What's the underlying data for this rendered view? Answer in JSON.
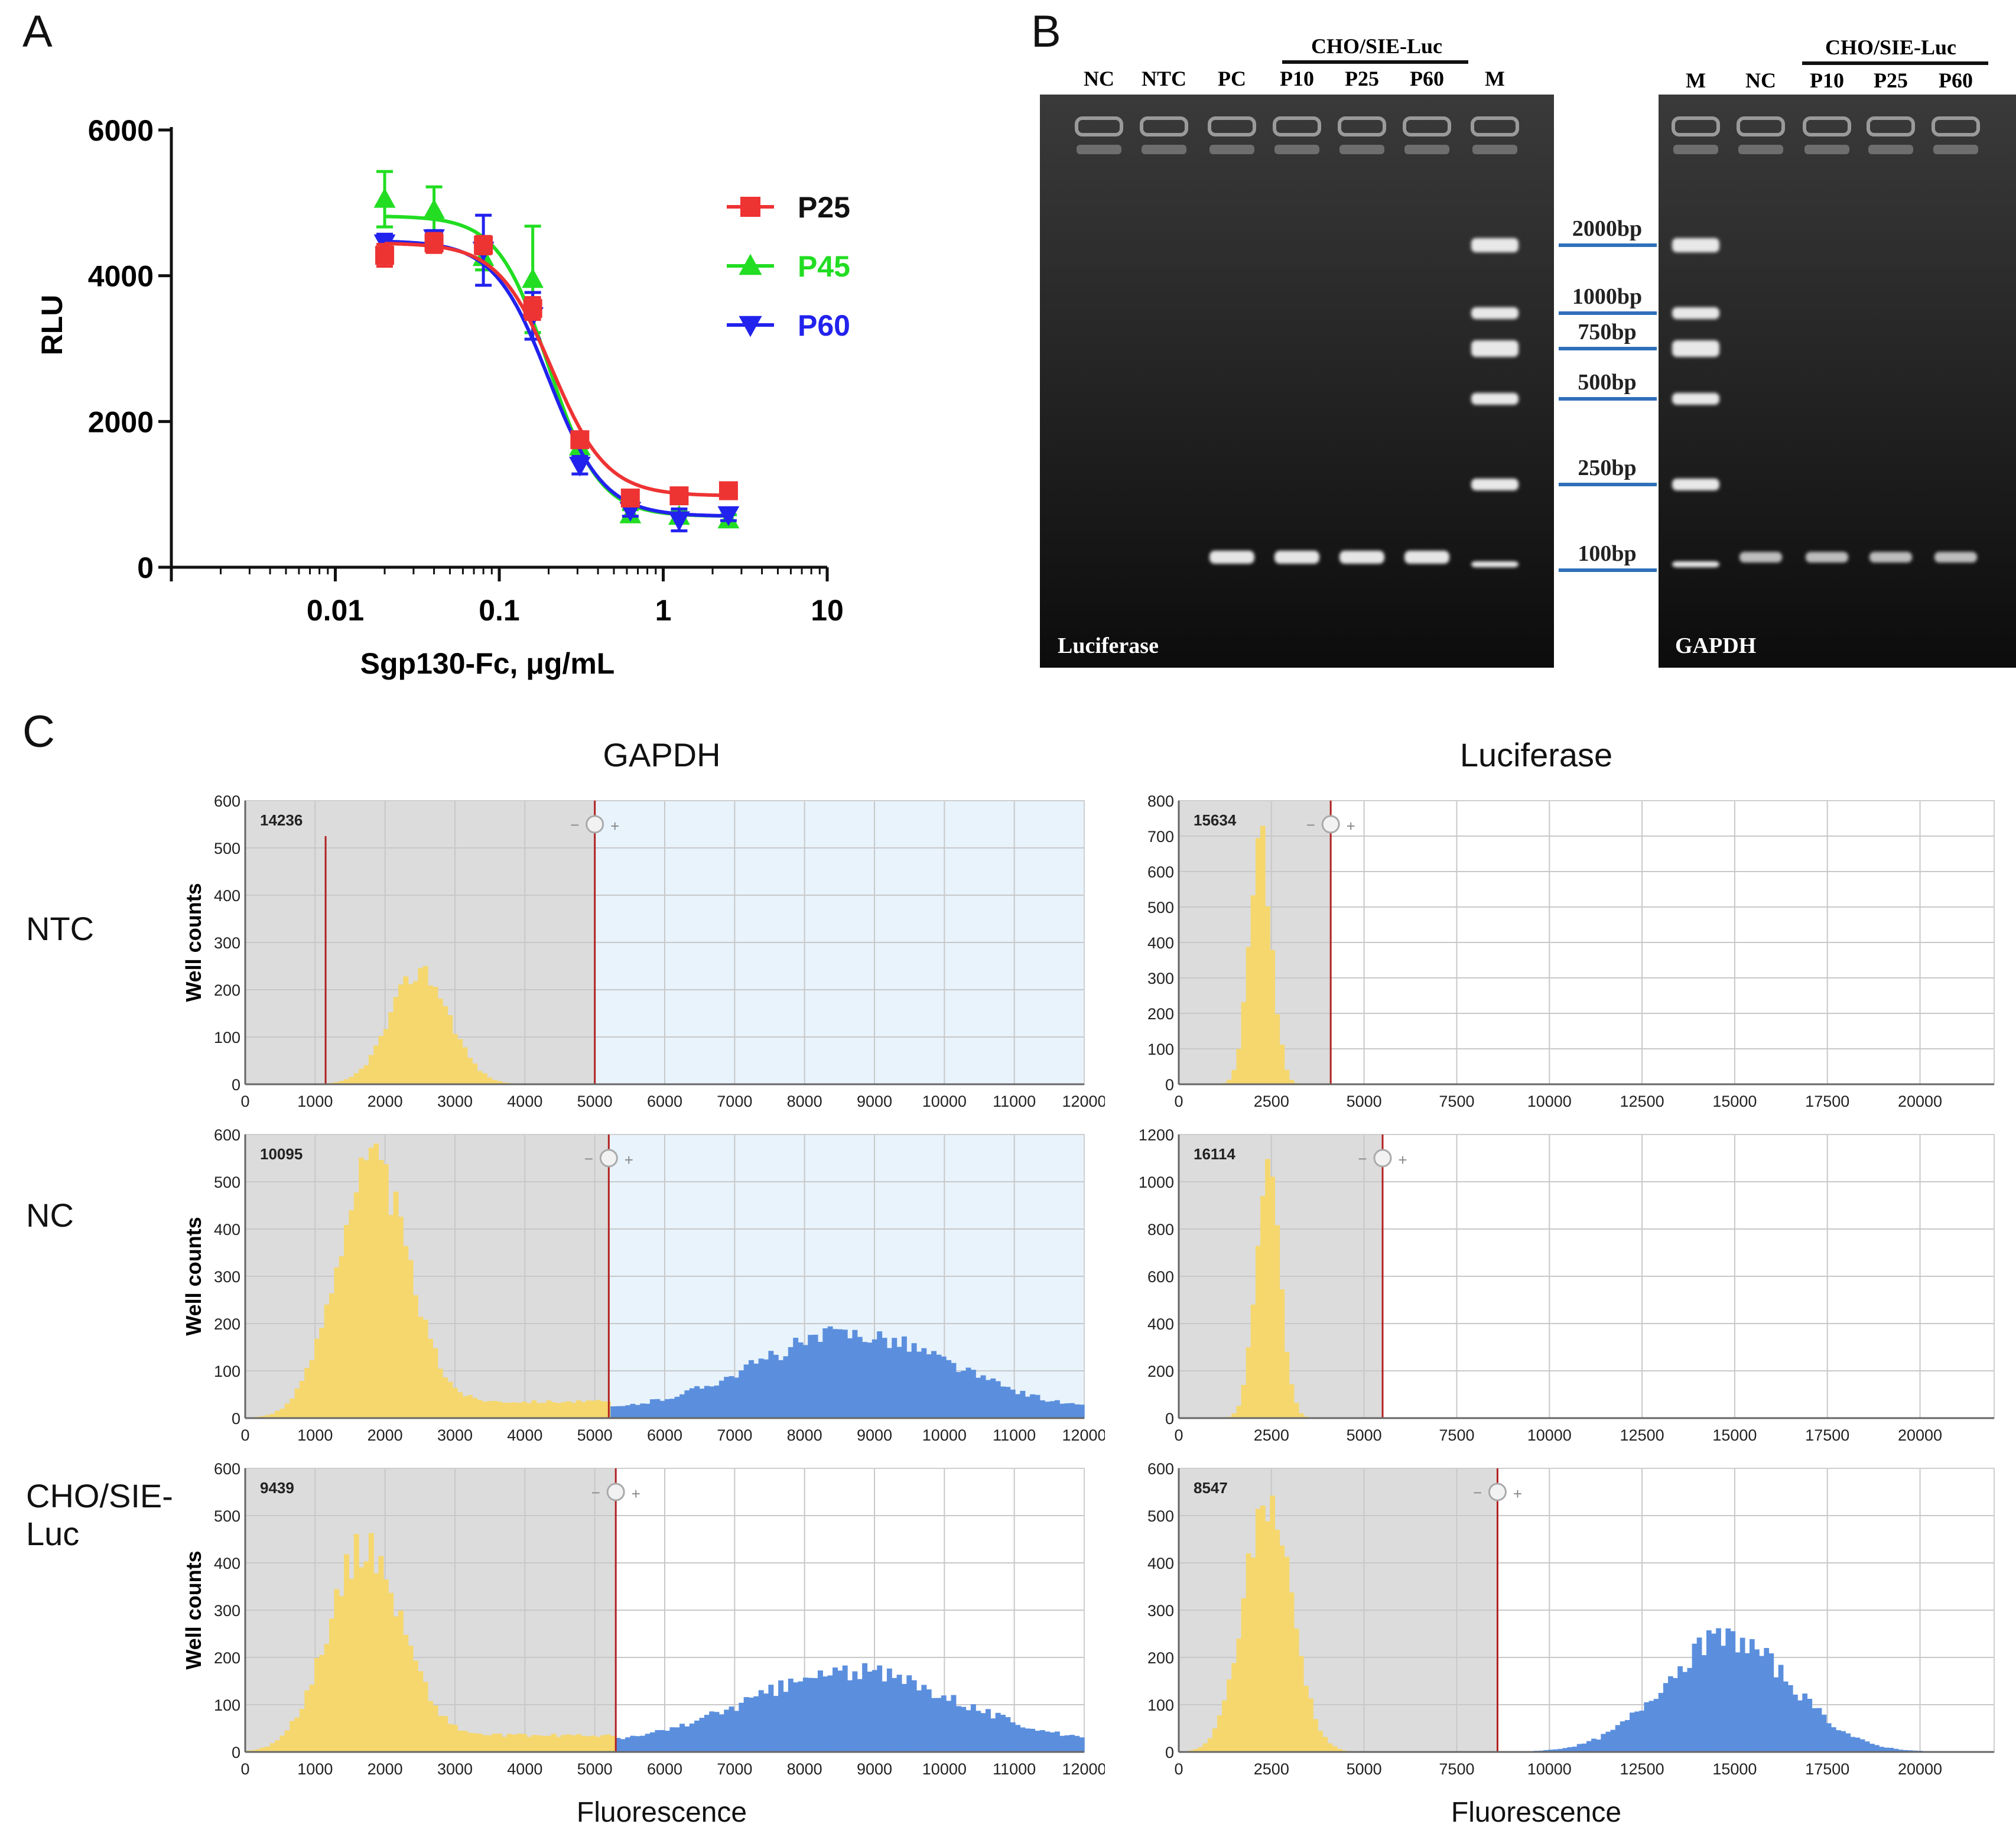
{
  "panels": {
    "a": {
      "letter": "A"
    },
    "b": {
      "letter": "B"
    },
    "c": {
      "letter": "C"
    }
  },
  "panel_b": {
    "left_gel": {
      "lanes": [
        "NC",
        "NTC",
        "PC",
        "P10",
        "P25",
        "P60",
        "M"
      ],
      "group_label": "CHO/SIE-Luc",
      "gene_label": "Luciferase",
      "bands": [
        null,
        null,
        "PC",
        "P10",
        "P25",
        "P60",
        null
      ]
    },
    "right_gel": {
      "lanes": [
        "M",
        "NC",
        "P10",
        "P25",
        "P60"
      ],
      "group_label": "CHO/SIE-Luc",
      "gene_label": "GAPDH"
    },
    "marker_labels": [
      "2000bp",
      "1000bp",
      "750bp",
      "500bp",
      "250bp",
      "100bp"
    ],
    "marker_color": "#2e6fba"
  },
  "panel_c": {
    "column_titles": [
      "GAPDH",
      "Luciferase"
    ],
    "row_labels": [
      "NTC",
      "NC",
      "CHO/SIE-\nLuc"
    ],
    "y_axis_title": "Well counts",
    "x_axis_title": "Fluorescence",
    "negative_color": "#f5d76e",
    "positive_color": "#5b8fde",
    "threshold_color": "#b22222"
  },
  "chart_data": [
    {
      "type": "line",
      "panel": "A",
      "xlabel": "Sgp130-Fc, μg/mL",
      "ylabel": "RLU",
      "xscale": "log",
      "xlim": [
        0.001,
        10
      ],
      "ylim": [
        0,
        6000
      ],
      "xticks": [
        "0.01",
        "0.1",
        "1",
        "10"
      ],
      "yticks": [
        "0",
        "2000",
        "4000",
        "6000"
      ],
      "legend_position": "top-right",
      "x": [
        0.02,
        0.04,
        0.08,
        0.16,
        0.31,
        0.63,
        1.25,
        2.5
      ],
      "series": [
        {
          "name": "P25",
          "color": "#ee3333",
          "marker": "square",
          "values": [
            4280,
            4450,
            4420,
            3550,
            1750,
            950,
            980,
            1050
          ],
          "errors": [
            150,
            130,
            120,
            150,
            80,
            70,
            60,
            60
          ],
          "fit": {
            "top": 4450,
            "bottom": 980,
            "ec50": 0.21,
            "hill": 2.6
          }
        },
        {
          "name": "P45",
          "color": "#22dd22",
          "marker": "triangle-up",
          "values": [
            5050,
            4900,
            4250,
            3950,
            1650,
            720,
            700,
            650
          ],
          "errors": [
            380,
            320,
            170,
            730,
            120,
            70,
            70,
            70
          ],
          "fit": {
            "top": 4820,
            "bottom": 700,
            "ec50": 0.2,
            "hill": 2.8
          }
        },
        {
          "name": "P60",
          "color": "#2222ee",
          "marker": "triangle-down",
          "values": [
            4450,
            4520,
            4350,
            3450,
            1400,
            780,
            650,
            720
          ],
          "errors": [
            120,
            100,
            480,
            320,
            120,
            80,
            150,
            80
          ],
          "fit": {
            "top": 4480,
            "bottom": 700,
            "ec50": 0.2,
            "hill": 2.6
          }
        }
      ]
    },
    {
      "type": "bar",
      "panel": "C",
      "row": "NTC",
      "column": "GAPDH",
      "count_label": "14236",
      "xlim": [
        0,
        12000
      ],
      "ylim": [
        0,
        600
      ],
      "xticks": [
        "0",
        "1000",
        "2000",
        "3000",
        "4000",
        "5000",
        "6000",
        "7000",
        "8000",
        "9000",
        "10000",
        "11000",
        "12000"
      ],
      "yticks": [
        "0",
        "100",
        "200",
        "300",
        "400",
        "500",
        "600"
      ],
      "threshold": 5000,
      "extra_line": 1150,
      "positive_region_shaded": true,
      "negative": {
        "center": 2500,
        "sigma": 420,
        "peak": 240
      },
      "positive": null
    },
    {
      "type": "bar",
      "panel": "C",
      "row": "NTC",
      "column": "Luciferase",
      "count_label": "15634",
      "xlim": [
        0,
        22000
      ],
      "ylim": [
        0,
        800
      ],
      "xticks": [
        "0",
        "2500",
        "5000",
        "7500",
        "10000",
        "12500",
        "15000",
        "17500",
        "20000"
      ],
      "yticks": [
        "0",
        "100",
        "200",
        "300",
        "400",
        "500",
        "600",
        "700",
        "800"
      ],
      "threshold": 4100,
      "positive_region_shaded": false,
      "negative": {
        "center": 2200,
        "sigma": 300,
        "peak": 680
      },
      "positive": null
    },
    {
      "type": "bar",
      "panel": "C",
      "row": "NC",
      "column": "GAPDH",
      "count_label": "10095",
      "xlim": [
        0,
        12000
      ],
      "ylim": [
        0,
        600
      ],
      "xticks": [
        "0",
        "1000",
        "2000",
        "3000",
        "4000",
        "5000",
        "6000",
        "7000",
        "8000",
        "9000",
        "10000",
        "11000",
        "12000"
      ],
      "yticks": [
        "0",
        "100",
        "200",
        "300",
        "400",
        "500",
        "600"
      ],
      "threshold": 5200,
      "positive_region_shaded": true,
      "negative": {
        "center": 1800,
        "sigma": 500,
        "peak": 540,
        "tail": 35
      },
      "positive": {
        "center": 8700,
        "sigma": 1400,
        "peak": 150,
        "base": 30
      }
    },
    {
      "type": "bar",
      "panel": "C",
      "row": "NC",
      "column": "Luciferase",
      "count_label": "16114",
      "xlim": [
        0,
        22000
      ],
      "ylim": [
        0,
        1200
      ],
      "xticks": [
        "0",
        "2500",
        "5000",
        "7500",
        "10000",
        "12500",
        "15000",
        "17500",
        "20000"
      ],
      "yticks": [
        "0",
        "200",
        "400",
        "600",
        "800",
        "1000",
        "1200"
      ],
      "threshold": 5500,
      "positive_region_shaded": false,
      "negative": {
        "center": 2400,
        "sigma": 320,
        "peak": 1080
      },
      "positive": null
    },
    {
      "type": "bar",
      "panel": "C",
      "row": "CHO/SIE-Luc",
      "column": "GAPDH",
      "count_label": "9439",
      "xlim": [
        0,
        12000
      ],
      "ylim": [
        0,
        600
      ],
      "xticks": [
        "0",
        "1000",
        "2000",
        "3000",
        "4000",
        "5000",
        "6000",
        "7000",
        "8000",
        "9000",
        "10000",
        "11000",
        "12000"
      ],
      "yticks": [
        "0",
        "100",
        "200",
        "300",
        "400",
        "500",
        "600"
      ],
      "threshold": 5300,
      "positive_region_shaded": false,
      "negative": {
        "center": 1700,
        "sigma": 520,
        "peak": 430,
        "tail": 35
      },
      "positive": {
        "center": 8700,
        "sigma": 1500,
        "peak": 140,
        "base": 30
      }
    },
    {
      "type": "bar",
      "panel": "C",
      "row": "CHO/SIE-Luc",
      "column": "Luciferase",
      "count_label": "8547",
      "xlim": [
        0,
        22000
      ],
      "ylim": [
        0,
        600
      ],
      "xticks": [
        "0",
        "2500",
        "5000",
        "7500",
        "10000",
        "12500",
        "15000",
        "17500",
        "20000"
      ],
      "yticks": [
        "0",
        "100",
        "200",
        "300",
        "400",
        "500",
        "600"
      ],
      "threshold": 8600,
      "positive_region_shaded": false,
      "negative": {
        "center": 2400,
        "sigma": 650,
        "peak": 530
      },
      "positive": {
        "center": 14800,
        "sigma": 1700,
        "peak": 240
      }
    }
  ]
}
